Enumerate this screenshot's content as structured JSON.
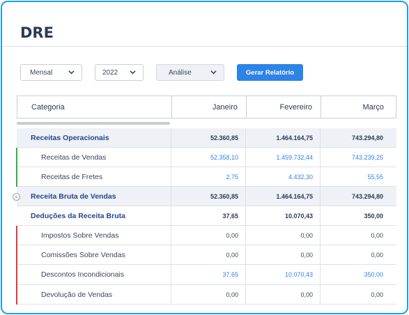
{
  "page": {
    "title": "DRE"
  },
  "filters": {
    "period": "Mensal",
    "year": "2022",
    "mode": "Análise",
    "generate_label": "Gerar Relatório"
  },
  "table": {
    "headers": [
      "Categoria",
      "Janeiro",
      "Fevereiro",
      "Março"
    ],
    "rows": [
      {
        "label": "Receitas Operacionais",
        "values": [
          "52.360,85",
          "1.464.164,75",
          "743.294,80"
        ]
      },
      {
        "label": "Receitas de Vendas",
        "values": [
          "52.358,10",
          "1.459.732,44",
          "743.239,25"
        ]
      },
      {
        "label": "Receitas de Fretes",
        "values": [
          "2,75",
          "4.432,30",
          "55,55"
        ]
      },
      {
        "label": "Receita Bruta de Vendas",
        "values": [
          "52.360,85",
          "1.464.164,75",
          "743.294,80"
        ]
      },
      {
        "label": "Deduções da Receita Bruta",
        "values": [
          "37,65",
          "10.070,43",
          "350,00"
        ]
      },
      {
        "label": "Impostos Sobre Vendas",
        "values": [
          "0,00",
          "0,00",
          "0,00"
        ]
      },
      {
        "label": "Comissões Sobre Vendas",
        "values": [
          "0,00",
          "0,00",
          "0,00"
        ]
      },
      {
        "label": "Descontos Incondicionais",
        "values": [
          "37,65",
          "10.070,43",
          "350,00"
        ]
      },
      {
        "label": "Devolução de Vendas",
        "values": [
          "0,00",
          "0,00",
          "0,00"
        ]
      }
    ]
  },
  "colors": {
    "accent": "#2d83e6",
    "frame": "#1ea0ea",
    "revenue_bar": "#2fb04a",
    "deduction_bar": "#e0393e"
  },
  "icons": {
    "select_chevron": "chevron-down-icon",
    "row_handle": "equals-icon"
  }
}
